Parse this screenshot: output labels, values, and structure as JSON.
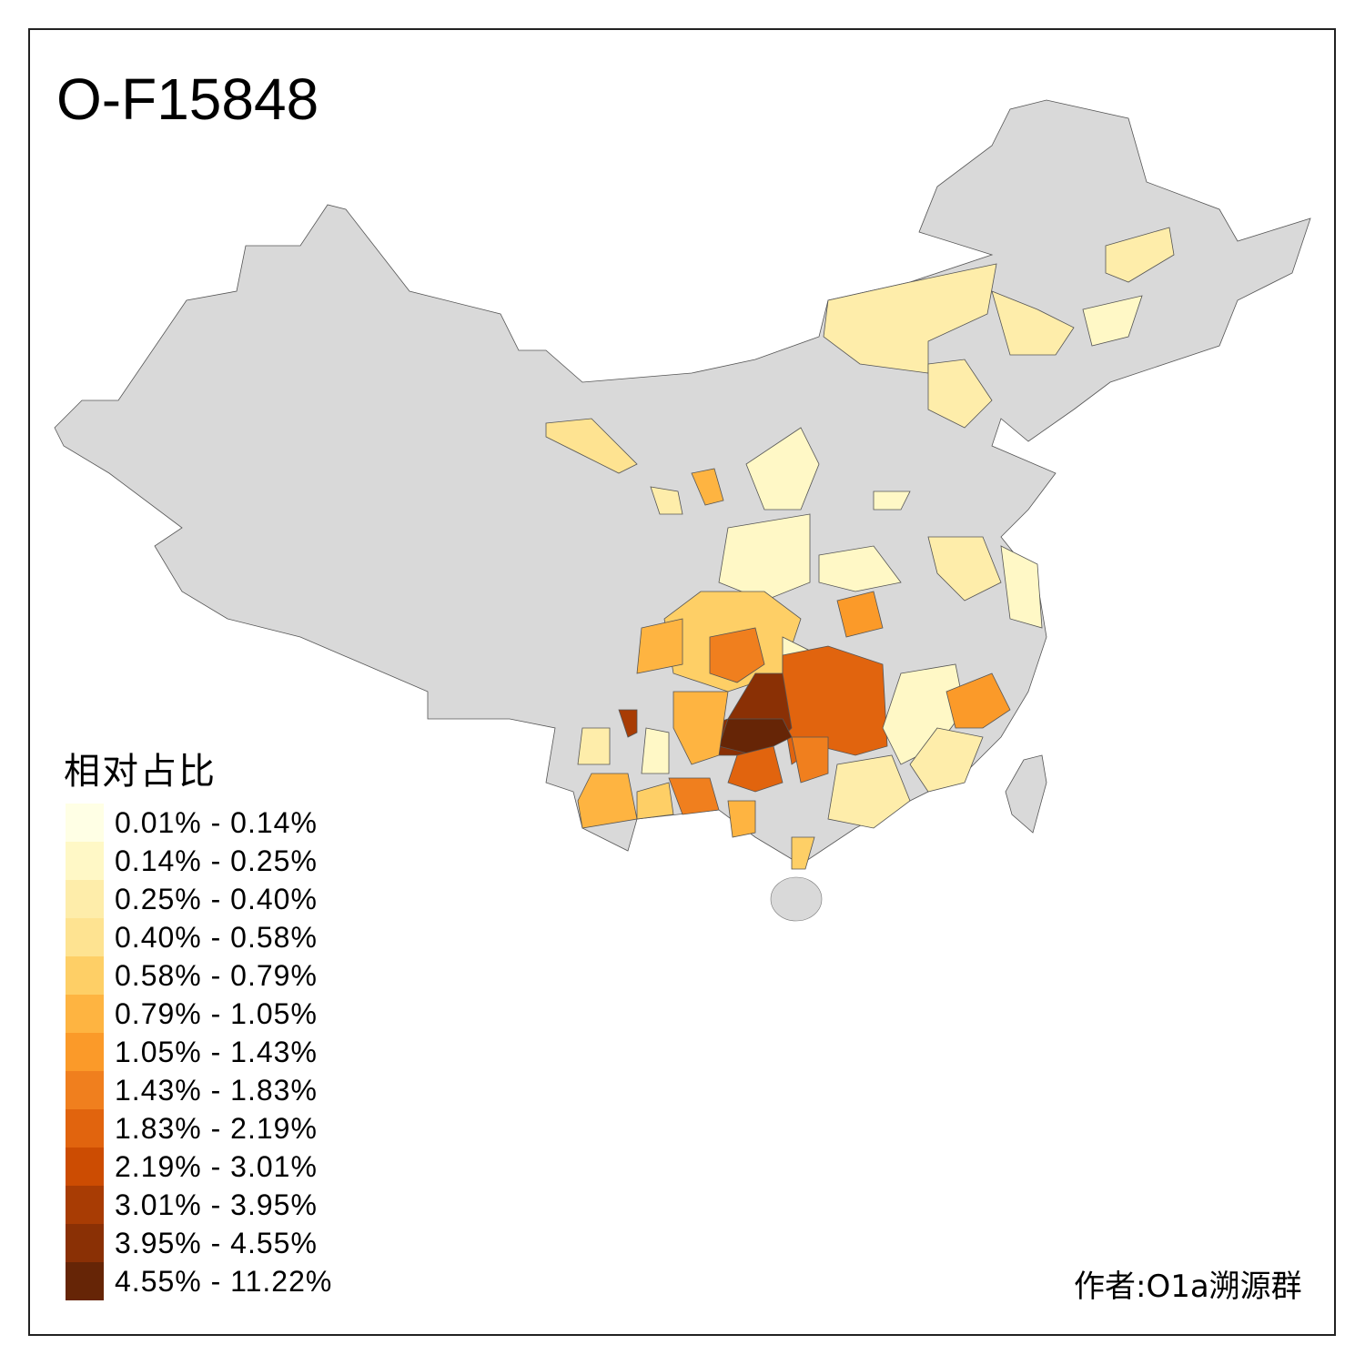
{
  "title": "O-F15848",
  "legend": {
    "title": "相对占比",
    "classes": [
      {
        "label": "0.01% - 0.14%",
        "color": "#FFFFE5"
      },
      {
        "label": "0.14% - 0.25%",
        "color": "#FFF8C6"
      },
      {
        "label": "0.25% - 0.40%",
        "color": "#FEEDAA"
      },
      {
        "label": "0.40% - 0.58%",
        "color": "#FEE391"
      },
      {
        "label": "0.58% - 0.79%",
        "color": "#FECF66"
      },
      {
        "label": "0.79% - 1.05%",
        "color": "#FEB441"
      },
      {
        "label": "1.05% - 1.43%",
        "color": "#FB9A29"
      },
      {
        "label": "1.43% - 1.83%",
        "color": "#F07F1E"
      },
      {
        "label": "1.83% - 2.19%",
        "color": "#E1640E"
      },
      {
        "label": "2.19% - 3.01%",
        "color": "#CC4C02"
      },
      {
        "label": "3.01% - 3.95%",
        "color": "#A83C04"
      },
      {
        "label": "3.95% - 4.55%",
        "color": "#8A3005"
      },
      {
        "label": "4.55% - 11.22%",
        "color": "#662506"
      }
    ]
  },
  "no_data_color": "#D9D9D9",
  "credit": "作者:O1a溯源群"
}
